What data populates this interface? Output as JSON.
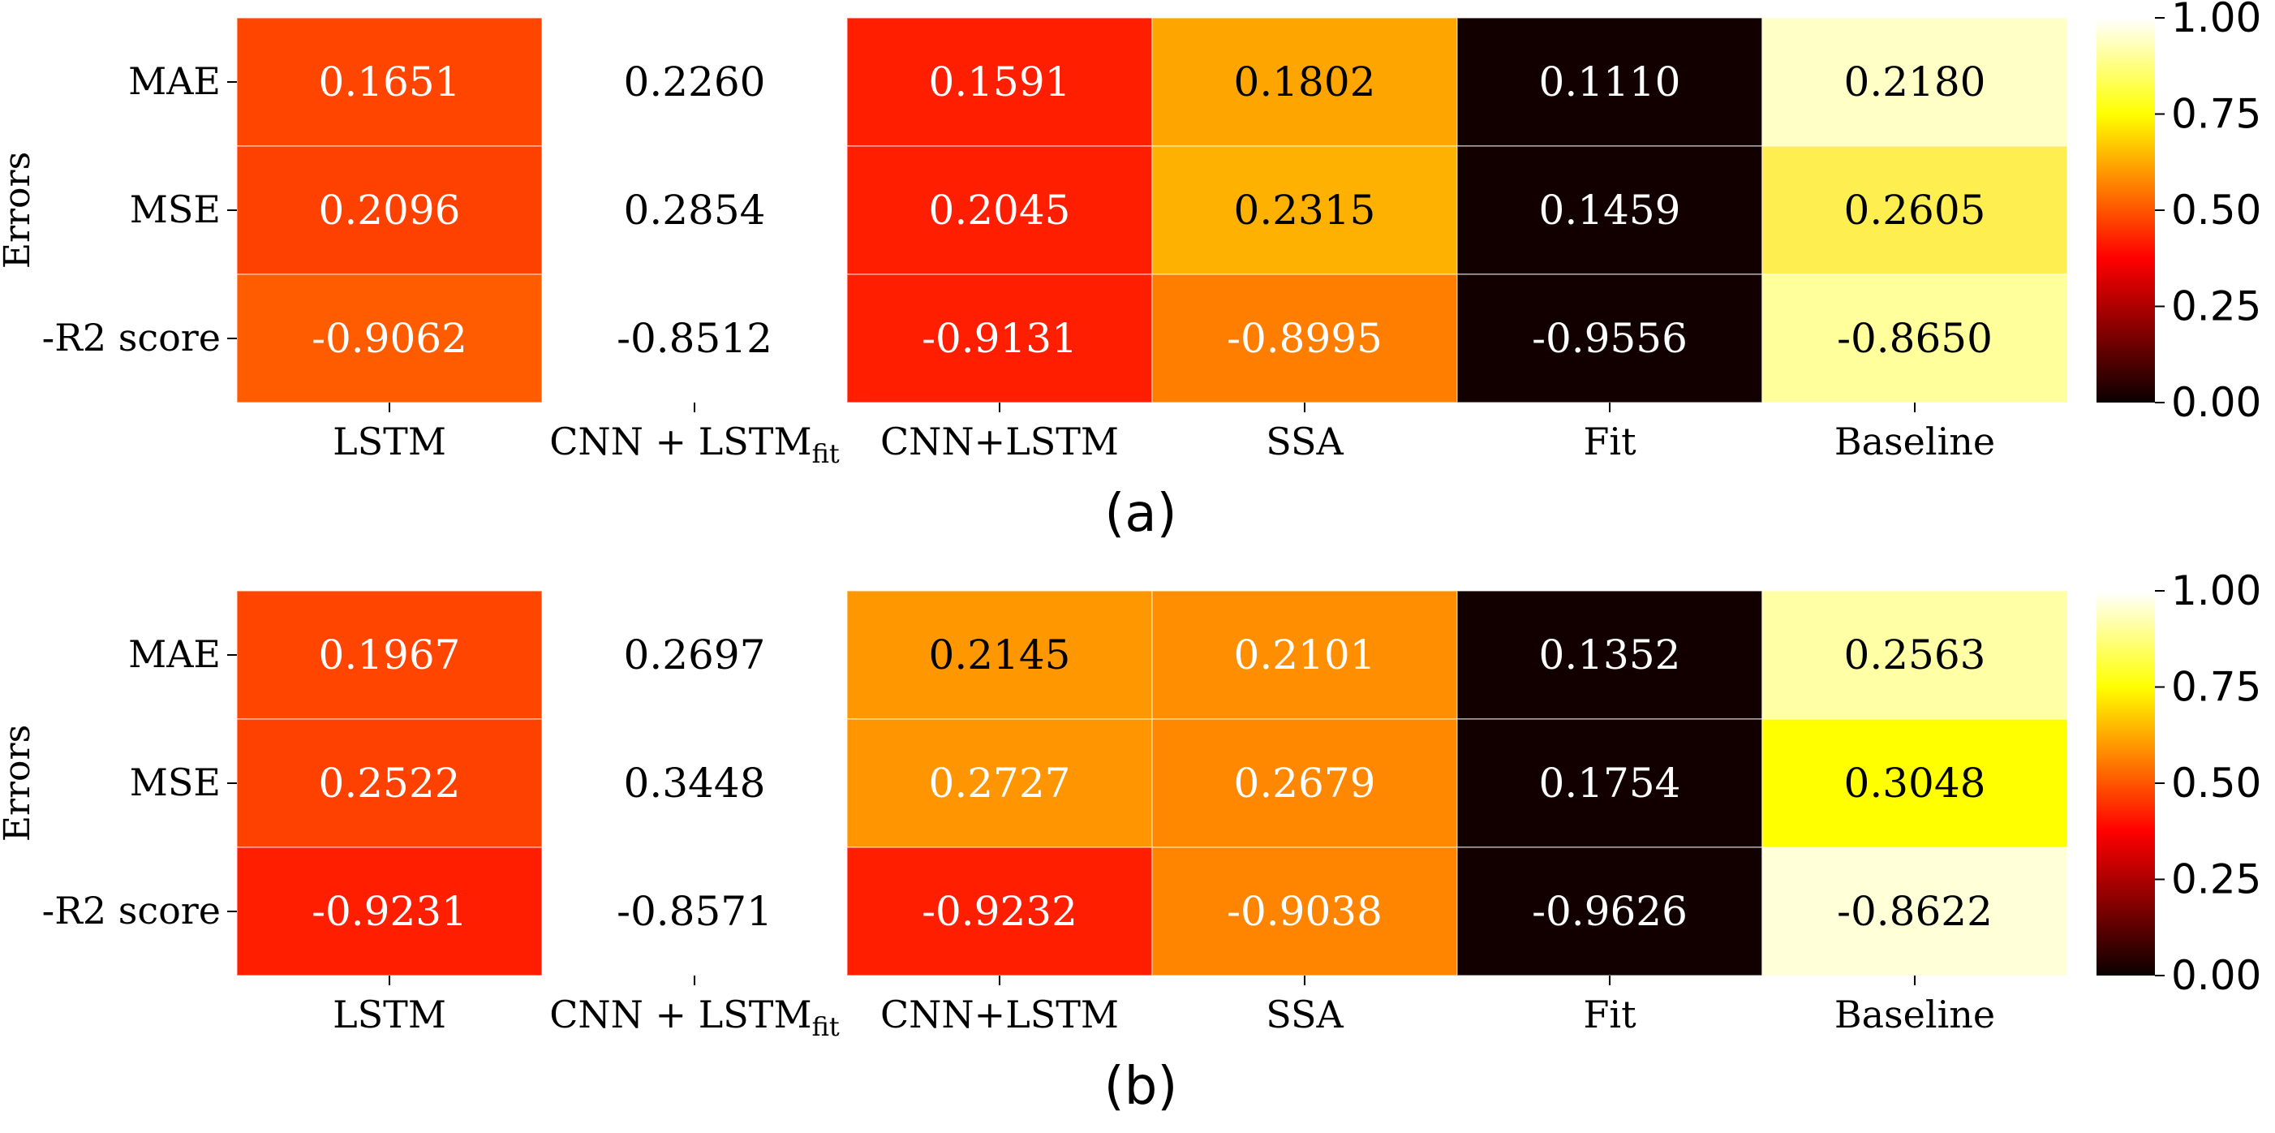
{
  "chart_data": [
    {
      "type": "heatmap",
      "panel_label": "(a)",
      "ylabel": "Errors",
      "rows": [
        "MAE",
        "MSE",
        "-R2 score"
      ],
      "columns": [
        "LSTM",
        "CNN + LSTM",
        "CNN+LSTM",
        "SSA",
        "Fit",
        "Baseline"
      ],
      "values": [
        [
          "0.1651",
          "0.2260",
          "0.1591",
          "0.1802",
          "0.1110",
          "0.2180"
        ],
        [
          "0.2096",
          "0.2854",
          "0.2045",
          "0.2315",
          "0.1459",
          "0.2605"
        ],
        [
          "-0.9062",
          "-0.8512",
          "-0.9131",
          "-0.8995",
          "-0.9556",
          "-0.8650"
        ]
      ],
      "colormap": "hot",
      "colorbar_range": [
        0,
        1
      ],
      "colorbar_ticks": [
        "1.00",
        "0.75",
        "0.50",
        "0.25",
        "0.00"
      ],
      "uncolored_column": "CNN + LSTM"
    },
    {
      "type": "heatmap",
      "panel_label": "(b)",
      "ylabel": "Errors",
      "rows": [
        "MAE",
        "MSE",
        "-R2 score"
      ],
      "columns": [
        "LSTM",
        "CNN + LSTM",
        "CNN+LSTM",
        "SSA",
        "Fit",
        "Baseline"
      ],
      "values": [
        [
          "0.1967",
          "0.2697",
          "0.2145",
          "0.2101",
          "0.1352",
          "0.2563"
        ],
        [
          "0.2522",
          "0.3448",
          "0.2727",
          "0.2679",
          "0.1754",
          "0.3048"
        ],
        [
          "-0.9231",
          "-0.8571",
          "-0.9232",
          "-0.9038",
          "-0.9626",
          "-0.8622"
        ]
      ],
      "colormap": "hot",
      "colorbar_range": [
        0,
        1
      ],
      "colorbar_ticks": [
        "1.00",
        "0.75",
        "0.50",
        "0.25",
        "0.00"
      ],
      "uncolored_column": "CNN + LSTM"
    }
  ],
  "fit_subscript": "fit",
  "colors": {
    "a": [
      [
        "#ff4500",
        null,
        "#ff1e00",
        "#ffa500",
        "#120000",
        "#ffffc6"
      ],
      [
        "#ff4100",
        null,
        "#ff1e00",
        "#ffb100",
        "#120000",
        "#ffee50"
      ],
      [
        "#ff5c00",
        null,
        "#ff1e00",
        "#ff7e00",
        "#120000",
        "#ffff9c"
      ]
    ],
    "b": [
      [
        "#ff4500",
        null,
        "#ff9800",
        "#ff8e00",
        "#120000",
        "#ffffa6"
      ],
      [
        "#ff4100",
        null,
        "#ff9500",
        "#ff8800",
        "#120000",
        "#ffff00"
      ],
      [
        "#ff1e00",
        null,
        "#ff1e00",
        "#ff8400",
        "#120000",
        "#ffffd8"
      ]
    ],
    "text": {
      "a": [
        [
          "#ffffff",
          "#000000",
          "#ffffff",
          "#000000",
          "#ffffff",
          "#000000"
        ],
        [
          "#ffffff",
          "#000000",
          "#ffffff",
          "#000000",
          "#ffffff",
          "#000000"
        ],
        [
          "#ffffff",
          "#000000",
          "#ffffff",
          "#ffffff",
          "#ffffff",
          "#000000"
        ]
      ],
      "b": [
        [
          "#ffffff",
          "#000000",
          "#000000",
          "#ffffff",
          "#ffffff",
          "#000000"
        ],
        [
          "#ffffff",
          "#000000",
          "#ffffff",
          "#ffffff",
          "#ffffff",
          "#000000"
        ],
        [
          "#ffffff",
          "#000000",
          "#ffffff",
          "#ffffff",
          "#ffffff",
          "#000000"
        ]
      ]
    }
  }
}
